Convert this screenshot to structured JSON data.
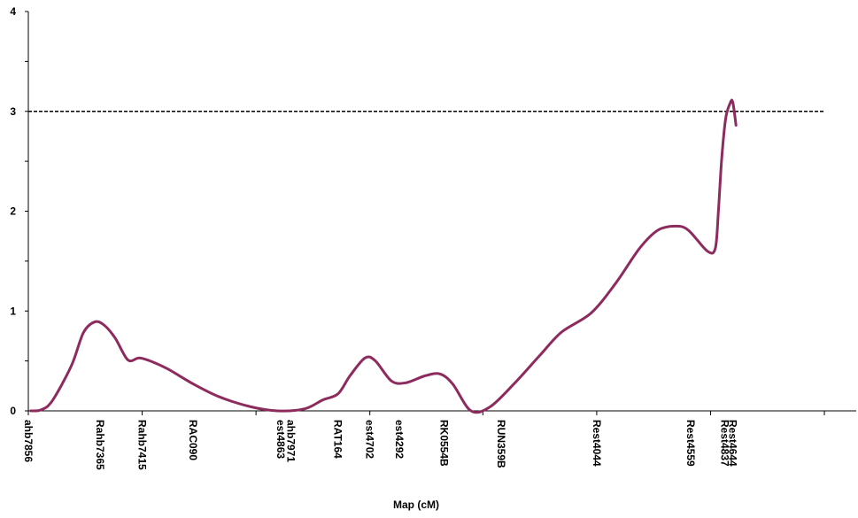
{
  "chart_data": {
    "type": "line",
    "title": "",
    "xlabel": "Map (cM)",
    "ylabel": "",
    "xlim": [
      0,
      104
    ],
    "ylim": [
      0,
      4
    ],
    "y_ticks": [
      0,
      1,
      2,
      3,
      4
    ],
    "x_tick_positions": [
      0,
      14.3,
      28.6,
      42.9,
      57.1,
      71.4,
      85.7,
      100
    ],
    "threshold": 3,
    "grid": false,
    "line_color": "#8e2b5e",
    "threshold_color": "#000000",
    "markers": [
      {
        "label": "ahb7856",
        "x": 0
      },
      {
        "label": "Rahb7365",
        "x": 9.0
      },
      {
        "label": "Rahb7415",
        "x": 14.3
      },
      {
        "label": "RAC090",
        "x": 20.7
      },
      {
        "label": "ahb7971",
        "x": 33.0
      },
      {
        "label": "est4863",
        "x": 31.7
      },
      {
        "label": "RAT164",
        "x": 38.9
      },
      {
        "label": "est4702",
        "x": 42.9
      },
      {
        "label": "est4292",
        "x": 46.6
      },
      {
        "label": "RK0554B",
        "x": 52.2
      },
      {
        "label": "RUN359B",
        "x": 59.4
      },
      {
        "label": "Rest4044",
        "x": 71.4
      },
      {
        "label": "Rest4559",
        "x": 83.2
      },
      {
        "label": "Rest4644",
        "x": 88.5
      },
      {
        "label": "Rest4837",
        "x": 87.5
      }
    ],
    "series": [
      {
        "values": [
          [
            0.3,
            0.0
          ],
          [
            1.6,
            0.01
          ],
          [
            3.0,
            0.1
          ],
          [
            5.4,
            0.45
          ],
          [
            6.9,
            0.78
          ],
          [
            8.3,
            0.89
          ],
          [
            9.5,
            0.86
          ],
          [
            10.9,
            0.73
          ],
          [
            12.5,
            0.51
          ],
          [
            13.9,
            0.53
          ],
          [
            15.3,
            0.5
          ],
          [
            17.5,
            0.42
          ],
          [
            20.7,
            0.27
          ],
          [
            24.0,
            0.14
          ],
          [
            28.0,
            0.04
          ],
          [
            31.3,
            0.0
          ],
          [
            34.7,
            0.02
          ],
          [
            37.0,
            0.11
          ],
          [
            38.9,
            0.17
          ],
          [
            40.4,
            0.35
          ],
          [
            42.3,
            0.53
          ],
          [
            43.6,
            0.5
          ],
          [
            45.6,
            0.3
          ],
          [
            47.4,
            0.28
          ],
          [
            49.8,
            0.35
          ],
          [
            51.7,
            0.37
          ],
          [
            53.3,
            0.27
          ],
          [
            55.6,
            0.0
          ],
          [
            58.0,
            0.04
          ],
          [
            61.0,
            0.27
          ],
          [
            64.3,
            0.56
          ],
          [
            67.0,
            0.79
          ],
          [
            70.7,
            0.98
          ],
          [
            73.8,
            1.28
          ],
          [
            76.8,
            1.63
          ],
          [
            79.1,
            1.81
          ],
          [
            81.3,
            1.85
          ],
          [
            82.9,
            1.81
          ],
          [
            85.3,
            1.6
          ],
          [
            86.3,
            1.63
          ],
          [
            86.7,
            2.02
          ],
          [
            87.1,
            2.53
          ],
          [
            87.6,
            2.93
          ],
          [
            88.2,
            3.09
          ],
          [
            88.5,
            3.09
          ],
          [
            88.9,
            2.86
          ]
        ]
      }
    ]
  }
}
